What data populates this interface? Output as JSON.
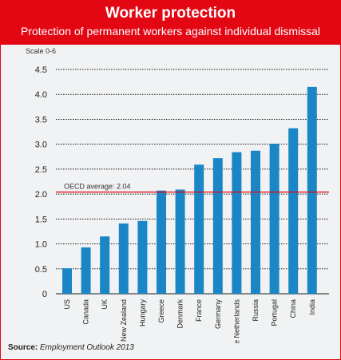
{
  "header": {
    "title": "Worker protection",
    "subtitle": "Protection of permanent workers against individual dismissal"
  },
  "colors": {
    "accent": "#e30613",
    "bar": "#1a86c6",
    "background": "#f1f2f3"
  },
  "source": {
    "label": "Source:",
    "text": "Employment Outlook 2013"
  },
  "chart_data": {
    "type": "bar",
    "title": "",
    "xlabel": "",
    "ylabel": "Scale 0-6",
    "categories": [
      "US",
      "Canada",
      "UK",
      "New Zealand",
      "Hungary",
      "Greece",
      "Denmark",
      "France",
      "Germany",
      "The Netherlands",
      "Russia",
      "Portugal",
      "China",
      "India"
    ],
    "values": [
      0.51,
      0.93,
      1.15,
      1.41,
      1.46,
      2.07,
      2.09,
      2.59,
      2.72,
      2.84,
      2.87,
      3.01,
      3.32,
      4.15
    ],
    "ylim": [
      0,
      4.5
    ],
    "yticks": [
      "0",
      "0.5",
      "1.0",
      "1.5",
      "2.0",
      "2.5",
      "3.0",
      "3.5",
      "4.0",
      "4.5"
    ],
    "grid": true,
    "annotation": {
      "label": "OECD average: 2.04",
      "value": 2.04
    }
  }
}
